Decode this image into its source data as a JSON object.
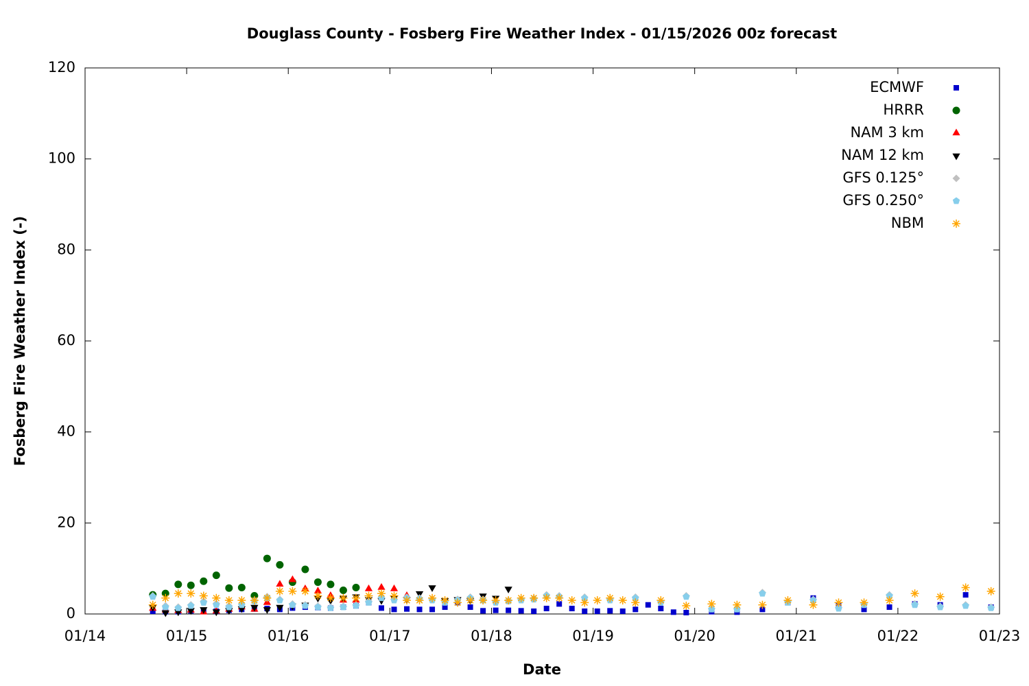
{
  "chart_data": {
    "type": "scatter",
    "title": "Douglass County - Fosberg Fire Weather Index - 01/15/2026 00z forecast",
    "xlabel": "Date",
    "ylabel": "Fosberg Fire Weather Index (-)",
    "xlim": [
      "01/14",
      "01/23"
    ],
    "xticks": [
      "01/14",
      "01/15",
      "01/16",
      "01/17",
      "01/18",
      "01/19",
      "01/20",
      "01/21",
      "01/22",
      "01/23"
    ],
    "ylim": [
      0,
      120
    ],
    "yticks": [
      0,
      20,
      40,
      60,
      80,
      100,
      120
    ],
    "grid": false,
    "legend": "top right",
    "x": [
      "01/14 16:00",
      "01/14 19:00",
      "01/14 22:00",
      "01/15 01:00",
      "01/15 04:00",
      "01/15 07:00",
      "01/15 10:00",
      "01/15 13:00",
      "01/15 16:00",
      "01/15 19:00",
      "01/15 22:00",
      "01/16 01:00",
      "01/16 04:00",
      "01/16 07:00",
      "01/16 10:00",
      "01/16 13:00",
      "01/16 16:00",
      "01/16 19:00",
      "01/16 22:00",
      "01/17 01:00",
      "01/17 04:00",
      "01/17 07:00",
      "01/17 10:00",
      "01/17 13:00",
      "01/17 16:00",
      "01/17 19:00",
      "01/17 22:00",
      "01/18 01:00",
      "01/18 04:00",
      "01/18 07:00",
      "01/18 10:00",
      "01/18 13:00",
      "01/18 16:00",
      "01/18 19:00",
      "01/18 22:00",
      "01/19 01:00",
      "01/19 04:00",
      "01/19 07:00",
      "01/19 10:00",
      "01/19 13:00",
      "01/19 16:00",
      "01/19 19:00",
      "01/19 22:00",
      "01/20 01:00",
      "01/20 04:00",
      "01/20 07:00",
      "01/20 10:00",
      "01/20 13:00",
      "01/20 16:00",
      "01/20 19:00",
      "01/20 22:00",
      "01/21 01:00",
      "01/21 04:00",
      "01/21 07:00",
      "01/21 10:00",
      "01/21 13:00",
      "01/21 16:00",
      "01/21 19:00",
      "01/21 22:00",
      "01/22 01:00",
      "01/22 04:00",
      "01/22 07:00",
      "01/22 10:00",
      "01/22 13:00",
      "01/22 16:00",
      "01/22 19:00",
      "01/22 22:00"
    ],
    "series": [
      {
        "name": "ECMWF",
        "color": "#0000cc",
        "marker": "square",
        "values": [
          0.6,
          0.5,
          0.5,
          0.7,
          0.8,
          0.6,
          0.8,
          1.0,
          1.1,
          1.2,
          1.0,
          1.3,
          1.5,
          1.4,
          1.3,
          1.5,
          1.8,
          2.5,
          1.3,
          1.0,
          1.1,
          1.0,
          1.0,
          1.5,
          2.5,
          1.5,
          0.7,
          0.8,
          0.8,
          0.7,
          0.6,
          1.2,
          2.2,
          1.2,
          0.6,
          0.6,
          0.7,
          0.6,
          1.0,
          2.0,
          1.2,
          0.4,
          0.3,
          null,
          0.5,
          null,
          0.4,
          null,
          1.0,
          null,
          2.5,
          null,
          3.5,
          null,
          1.8,
          null,
          1.0,
          null,
          1.5,
          null,
          2.2,
          null,
          2.0,
          null,
          4.2,
          null,
          1.5
        ]
      },
      {
        "name": "HRRR",
        "color": "#006400",
        "marker": "circle",
        "values": [
          4.2,
          4.5,
          6.5,
          6.3,
          7.2,
          8.5,
          5.7,
          5.8,
          4.0,
          12.2,
          10.8,
          7.0,
          9.8,
          7.0,
          6.5,
          5.2,
          5.8,
          null,
          null,
          null,
          null,
          null,
          null,
          null,
          null,
          null,
          null,
          null,
          null,
          null,
          null,
          null,
          null,
          null,
          null,
          null,
          null,
          null,
          null,
          null,
          null,
          null,
          null,
          null,
          null,
          null,
          null,
          null,
          null,
          null,
          null,
          null,
          null,
          null,
          null,
          null,
          null,
          null,
          null,
          null,
          null,
          null,
          null,
          null,
          null,
          null,
          null
        ]
      },
      {
        "name": "NAM 3 km",
        "color": "#ff0000",
        "marker": "triangle-up",
        "values": [
          1.2,
          0.8,
          0.7,
          0.8,
          0.4,
          0.6,
          1.0,
          1.5,
          1.0,
          2.5,
          6.5,
          7.5,
          5.5,
          5.0,
          4.0,
          3.0,
          3.0,
          5.5,
          5.8,
          5.5,
          4.0,
          null,
          null,
          null,
          null,
          null,
          null,
          null,
          null,
          null,
          null,
          null,
          null,
          null,
          null,
          null,
          null,
          null,
          null,
          null,
          null,
          null,
          null,
          null,
          null,
          null,
          null,
          null,
          null,
          null,
          null,
          null,
          null,
          null,
          null,
          null,
          null,
          null,
          null,
          null,
          null,
          null,
          null,
          null,
          null,
          null,
          null
        ]
      },
      {
        "name": "NAM 12 km",
        "color": "#000000",
        "marker": "triangle-down",
        "values": [
          1.5,
          0.3,
          0.5,
          0.8,
          1.0,
          0.5,
          0.8,
          1.2,
          1.5,
          1.0,
          1.5,
          1.8,
          2.0,
          3.5,
          3.0,
          3.5,
          3.8,
          3.2,
          3.0,
          3.5,
          3.2,
          4.5,
          5.8,
          3.0,
          3.2,
          3.0,
          4.0,
          3.5,
          5.5,
          null,
          null,
          null,
          null,
          null,
          null,
          null,
          null,
          null,
          null,
          null,
          null,
          null,
          null,
          null,
          null,
          null,
          null,
          null,
          null,
          null,
          null,
          null,
          null,
          null,
          null,
          null,
          null,
          null,
          null,
          null,
          null,
          null,
          null,
          null,
          null,
          null,
          null
        ]
      },
      {
        "name": "GFS 0.125°",
        "color": "#c0c0c0",
        "marker": "diamond",
        "values": [
          4.0,
          1.8,
          1.5,
          2.0,
          2.8,
          2.3,
          1.8,
          2.2,
          3.0,
          3.8,
          3.2,
          2.2,
          2.0,
          1.7,
          1.5,
          1.7,
          2.0,
          2.8,
          3.7,
          3.2,
          3.7,
          3.5,
          3.2,
          2.8,
          3.2,
          3.7,
          3.2,
          2.7,
          3.0,
          3.2,
          3.4,
          4.2,
          4.0,
          null,
          3.7,
          null,
          3.2,
          null,
          3.7,
          null,
          2.7,
          null,
          4.0,
          null,
          1.2,
          null,
          1.2,
          null,
          4.7,
          null,
          2.7,
          null,
          3.2,
          null,
          1.4,
          null,
          2.2,
          null,
          4.2,
          null,
          2.2,
          null,
          1.7,
          null,
          2.0,
          null,
          1.5
        ]
      },
      {
        "name": "GFS 0.250°",
        "color": "#87ceeb",
        "marker": "pentagon",
        "values": [
          3.8,
          1.5,
          1.3,
          1.8,
          2.5,
          2.0,
          1.5,
          2.0,
          2.8,
          3.5,
          3.0,
          2.0,
          1.8,
          1.5,
          1.3,
          1.5,
          1.8,
          2.5,
          3.5,
          3.0,
          3.5,
          3.3,
          3.0,
          2.5,
          3.0,
          3.5,
          3.0,
          2.5,
          2.8,
          3.0,
          3.2,
          4.0,
          3.8,
          null,
          3.5,
          null,
          3.0,
          null,
          3.5,
          null,
          2.5,
          null,
          3.8,
          null,
          1.0,
          null,
          1.0,
          null,
          4.5,
          null,
          2.5,
          null,
          3.0,
          null,
          1.2,
          null,
          2.0,
          null,
          4.0,
          null,
          2.0,
          null,
          1.5,
          null,
          1.8,
          null,
          1.3
        ]
      },
      {
        "name": "NBM",
        "color": "#ffa500",
        "marker": "star",
        "values": [
          2.0,
          3.5,
          4.5,
          4.5,
          4.0,
          3.5,
          3.0,
          3.0,
          3.0,
          3.5,
          5.0,
          5.0,
          5.0,
          4.0,
          3.5,
          3.5,
          3.5,
          4.0,
          4.5,
          4.0,
          3.0,
          3.0,
          3.5,
          3.0,
          2.5,
          3.0,
          3.0,
          3.0,
          3.0,
          3.5,
          3.5,
          3.5,
          3.5,
          3.0,
          2.5,
          3.0,
          3.5,
          3.0,
          2.5,
          null,
          3.0,
          null,
          1.8,
          null,
          2.2,
          null,
          2.0,
          null,
          2.0,
          null,
          3.0,
          null,
          2.0,
          null,
          2.5,
          null,
          2.5,
          null,
          3.0,
          null,
          4.5,
          null,
          3.8,
          null,
          5.8,
          null,
          5.0
        ]
      }
    ]
  }
}
